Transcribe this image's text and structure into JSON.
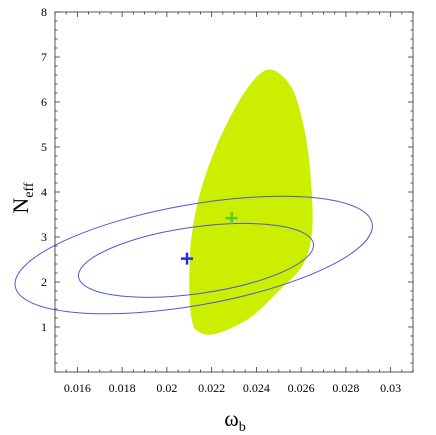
{
  "chart_data": {
    "type": "scatter",
    "title": "",
    "xlabel": {
      "main": "ω",
      "sub": "b"
    },
    "ylabel": {
      "main": "N",
      "sub": "eff"
    },
    "xlim": [
      0.015,
      0.031
    ],
    "ylim": [
      0,
      8
    ],
    "x_ticks": [
      0.016,
      0.018,
      0.02,
      0.022,
      0.024,
      0.026,
      0.028,
      0.03
    ],
    "x_tick_labels": [
      "0.016",
      "0.018",
      "0.02",
      "0.022",
      "0.024",
      "0.026",
      "0.028",
      "0.03"
    ],
    "y_ticks": [
      1,
      2,
      3,
      4,
      5,
      6,
      7,
      8
    ],
    "y_tick_labels": [
      "1",
      "2",
      "3",
      "4",
      "5",
      "6",
      "7",
      "8"
    ],
    "grid": false,
    "colors": {
      "region_fill": "#ccee00",
      "contour_stroke": "#4a5bd6",
      "blue_marker": "#2a2ae0",
      "green_marker": "#55cc33",
      "frame": "#555555"
    },
    "filled_region": {
      "outline": [
        [
          0.0214,
          0.9
        ],
        [
          0.0222,
          0.85
        ],
        [
          0.0237,
          1.2
        ],
        [
          0.025,
          1.8
        ],
        [
          0.0261,
          2.4
        ],
        [
          0.0265,
          3.2
        ],
        [
          0.0264,
          4.5
        ],
        [
          0.0261,
          5.5
        ],
        [
          0.0256,
          6.3
        ],
        [
          0.0248,
          6.7
        ],
        [
          0.0241,
          6.6
        ],
        [
          0.0232,
          6.0
        ],
        [
          0.0222,
          5.0
        ],
        [
          0.0215,
          4.0
        ],
        [
          0.0211,
          3.0
        ],
        [
          0.021,
          2.0
        ],
        [
          0.0211,
          1.2
        ]
      ]
    },
    "contours": [
      {
        "level": "inner",
        "center": [
          0.0213,
          2.48
        ],
        "half_width": 0.0053,
        "half_height": 0.74,
        "tilt_deg": 8
      },
      {
        "level": "outer",
        "center": [
          0.0212,
          2.6
        ],
        "half_width": 0.0081,
        "half_height": 1.12,
        "tilt_deg": 10
      }
    ],
    "points": [
      {
        "marker": "plus",
        "x": 0.0209,
        "y": 2.52,
        "color": "#2a2ae0"
      },
      {
        "marker": "plus",
        "x": 0.0229,
        "y": 3.42,
        "color": "#55cc33"
      }
    ]
  }
}
